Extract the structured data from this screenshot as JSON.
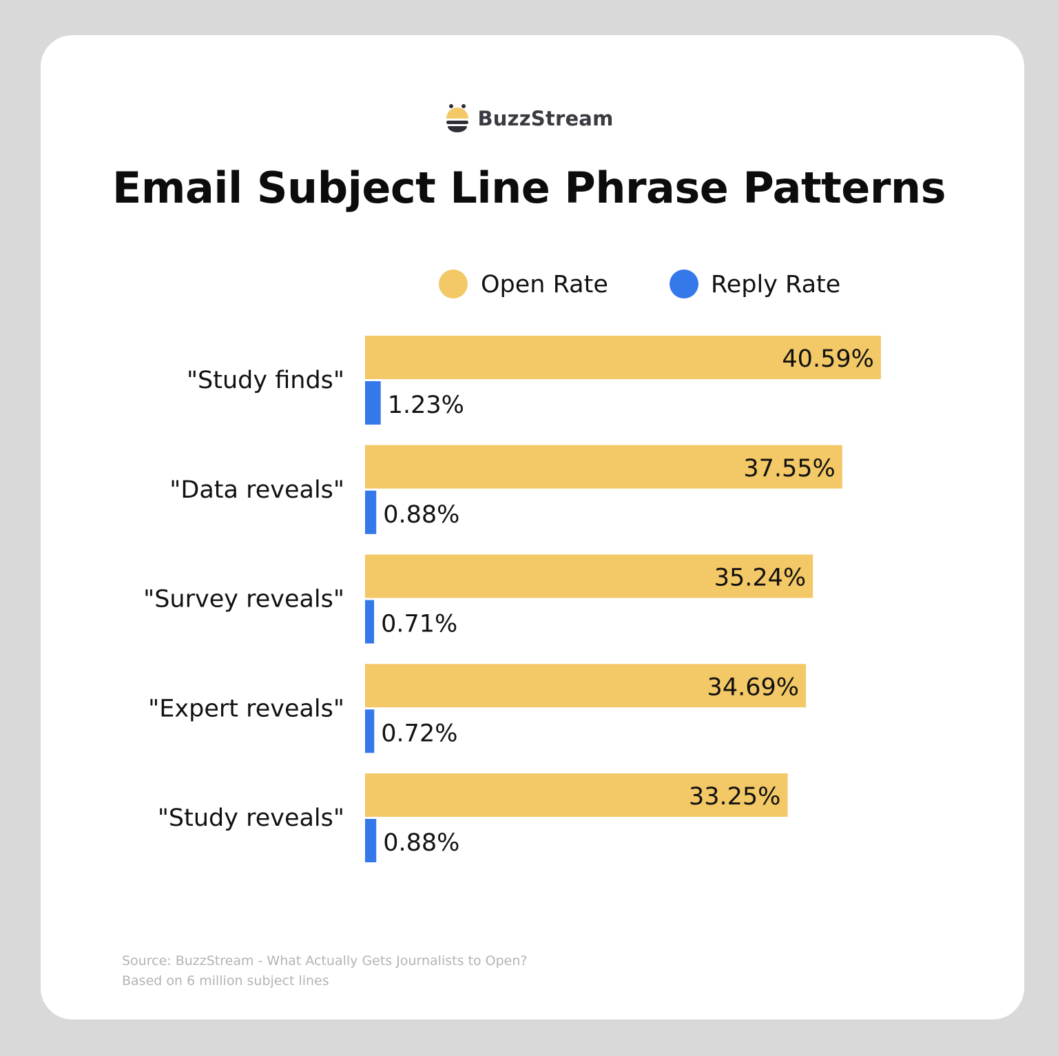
{
  "brand": {
    "name": "BuzzStream",
    "logo_icon": "bee-icon",
    "colors": {
      "yellow": "#f3c866",
      "dark": "#2e2e36"
    }
  },
  "chart_data": {
    "type": "bar",
    "orientation": "horizontal",
    "title": "Email Subject Line Phrase Patterns",
    "categories": [
      "\"Study finds\"",
      "\"Data reveals\"",
      "\"Survey reveals\"",
      "\"Expert reveals\"",
      "\"Study reveals\""
    ],
    "series": [
      {
        "name": "Open Rate",
        "color": "#f3c866",
        "values": [
          40.59,
          37.55,
          35.24,
          34.69,
          33.25
        ],
        "labels": [
          "40.59%",
          "37.55%",
          "35.24%",
          "34.69%",
          "33.25%"
        ]
      },
      {
        "name": "Reply Rate",
        "color": "#3478ea",
        "values": [
          1.23,
          0.88,
          0.71,
          0.72,
          0.88
        ],
        "labels": [
          "1.23%",
          "0.88%",
          "0.71%",
          "0.72%",
          "0.88%"
        ]
      }
    ],
    "xlim": [
      0,
      41
    ],
    "grid": false,
    "legend_position": "top-right",
    "units": "%"
  },
  "source": {
    "line1": "Source: BuzzStream - What Actually Gets Journalists to Open?",
    "line2": "Based on 6 million subject lines"
  }
}
